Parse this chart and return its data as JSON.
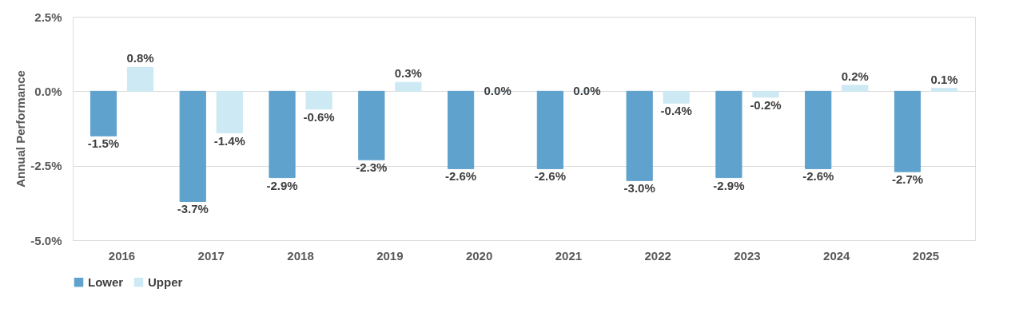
{
  "chart_data": {
    "type": "bar",
    "ylabel": "Annual Performance",
    "categories": [
      "2016",
      "2017",
      "2018",
      "2019",
      "2020",
      "2021",
      "2022",
      "2023",
      "2024",
      "2025"
    ],
    "series": [
      {
        "name": "Lower",
        "color": "#5fa2cd",
        "values": [
          -1.5,
          -3.7,
          -2.9,
          -2.3,
          -2.6,
          -2.6,
          -3.0,
          -2.9,
          -2.6,
          -2.7
        ],
        "value_labels": [
          "-1.5%",
          "-3.7%",
          "-2.9%",
          "-2.3%",
          "-2.6%",
          "-2.6%",
          "-3.0%",
          "-2.9%",
          "-2.6%",
          "-2.7%"
        ]
      },
      {
        "name": "Upper",
        "color": "#cde9f3",
        "values": [
          0.8,
          -1.4,
          -0.6,
          0.3,
          0.0,
          0.0,
          -0.4,
          -0.2,
          0.2,
          0.1
        ],
        "value_labels": [
          "0.8%",
          "-1.4%",
          "-0.6%",
          "0.3%",
          "0.0%",
          "0.0%",
          "-0.4%",
          "-0.2%",
          "0.2%",
          "0.1%"
        ]
      }
    ],
    "ylim": [
      -5.0,
      2.5
    ],
    "yticks": [
      {
        "value": -5.0,
        "label": "-5.0%"
      },
      {
        "value": -2.5,
        "label": "-2.5%"
      },
      {
        "value": 0.0,
        "label": "0.0%"
      },
      {
        "value": 2.5,
        "label": "2.5%"
      }
    ],
    "grid": "y",
    "legend": "bottom"
  }
}
